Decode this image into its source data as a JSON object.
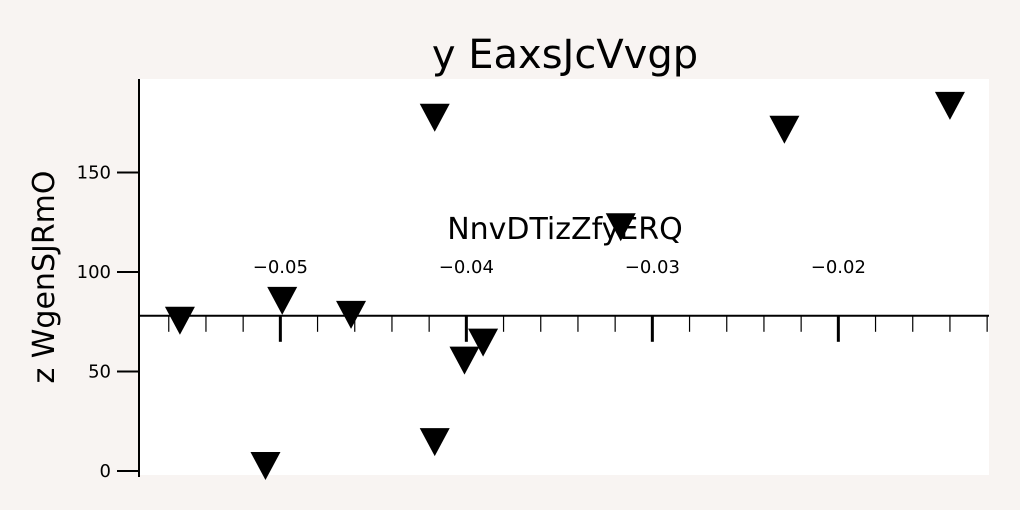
{
  "chart_data": {
    "type": "scatter",
    "title": "y EaxsJcVvgp",
    "xlabel": "NnvDTizZfyERQ",
    "ylabel": "z WgenSJRmO",
    "xlim": [
      -0.0576,
      -0.0119
    ],
    "ylim": [
      -2,
      197
    ],
    "x_ticks": [
      -0.05,
      -0.04,
      -0.03,
      -0.02
    ],
    "x_tick_labels": [
      "−0.05",
      "−0.04",
      "−0.03",
      "−0.02"
    ],
    "y_ticks": [
      0,
      50,
      100,
      150
    ],
    "y_tick_labels": [
      "0",
      "50",
      "100",
      "150"
    ],
    "x_axis_at_y": 78,
    "marker": "triangle-down",
    "grid": false,
    "points": [
      {
        "x": -0.0554,
        "y": 76
      },
      {
        "x": -0.0508,
        "y": 3
      },
      {
        "x": -0.0499,
        "y": 86
      },
      {
        "x": -0.0462,
        "y": 79
      },
      {
        "x": -0.0417,
        "y": 178
      },
      {
        "x": -0.0417,
        "y": 15
      },
      {
        "x": -0.0401,
        "y": 56
      },
      {
        "x": -0.0391,
        "y": 65
      },
      {
        "x": -0.0317,
        "y": 123
      },
      {
        "x": -0.0229,
        "y": 172
      },
      {
        "x": -0.014,
        "y": 184
      }
    ]
  }
}
